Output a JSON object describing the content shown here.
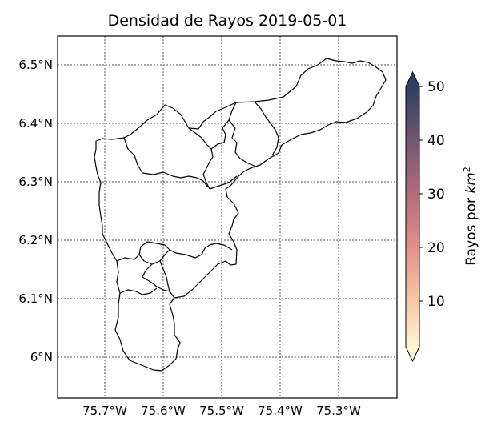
{
  "title": "Densidad de Rayos 2019-05-01",
  "map": {
    "lon_ticks": [
      "75.7°W",
      "75.6°W",
      "75.5°W",
      "75.4°W",
      "75.3°W"
    ],
    "lat_ticks": [
      "6.5°N",
      "6.4°N",
      "6.3°N",
      "6.2°N",
      "6.1°N",
      "6°N"
    ],
    "lon_values": [
      -75.7,
      -75.6,
      -75.5,
      -75.4,
      -75.3
    ],
    "lat_values": [
      6.5,
      6.4,
      6.3,
      6.2,
      6.1,
      6.0
    ],
    "lon_range": [
      -75.78,
      -75.23
    ],
    "lat_range": [
      5.93,
      6.55
    ],
    "grid": "on, dotted gray"
  },
  "colorbar": {
    "label_prefix": "Rayos por ",
    "label_unit": "km",
    "label_exp": "2",
    "ticks": [
      "10",
      "20",
      "30",
      "40",
      "50"
    ],
    "range": [
      0,
      50
    ],
    "extend": "both",
    "colors": [
      "#fdf5d5",
      "#f8c7a4",
      "#e4908b",
      "#b46d7c",
      "#6f5672",
      "#2e3f62"
    ]
  }
}
